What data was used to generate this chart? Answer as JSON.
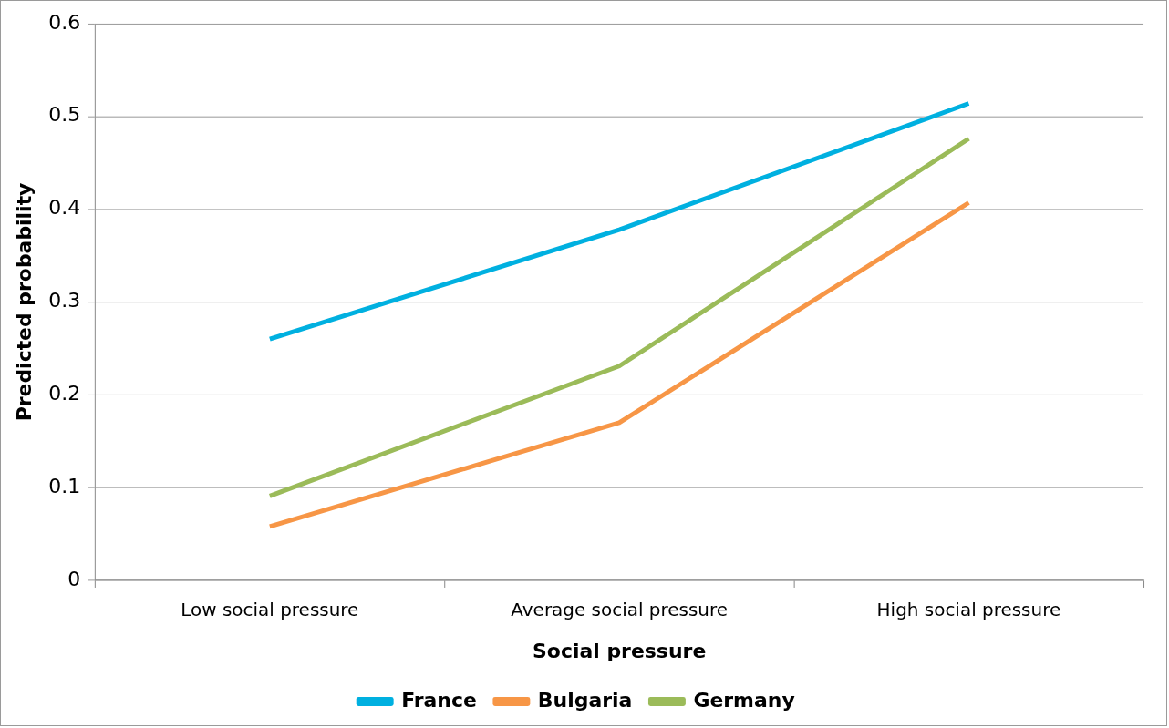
{
  "chart_data": {
    "type": "line",
    "xlabel": "Social pressure",
    "ylabel": "Predicted probability",
    "categories": [
      "Low social pressure",
      "Average social pressure",
      "High social pressure"
    ],
    "series": [
      {
        "name": "France",
        "color": "#00b0e0",
        "values": [
          0.26,
          0.378,
          0.514
        ]
      },
      {
        "name": "Bulgaria",
        "color": "#f79646",
        "values": [
          0.058,
          0.17,
          0.407
        ]
      },
      {
        "name": "Germany",
        "color": "#9bbb59",
        "values": [
          0.091,
          0.231,
          0.476
        ]
      }
    ],
    "ylim": [
      0,
      0.6
    ],
    "yticks": [
      0,
      0.1,
      0.2,
      0.3,
      0.4,
      0.5,
      0.6
    ],
    "grid": "y",
    "legend": "bottom",
    "marker": "none",
    "line_style": "solid"
  }
}
